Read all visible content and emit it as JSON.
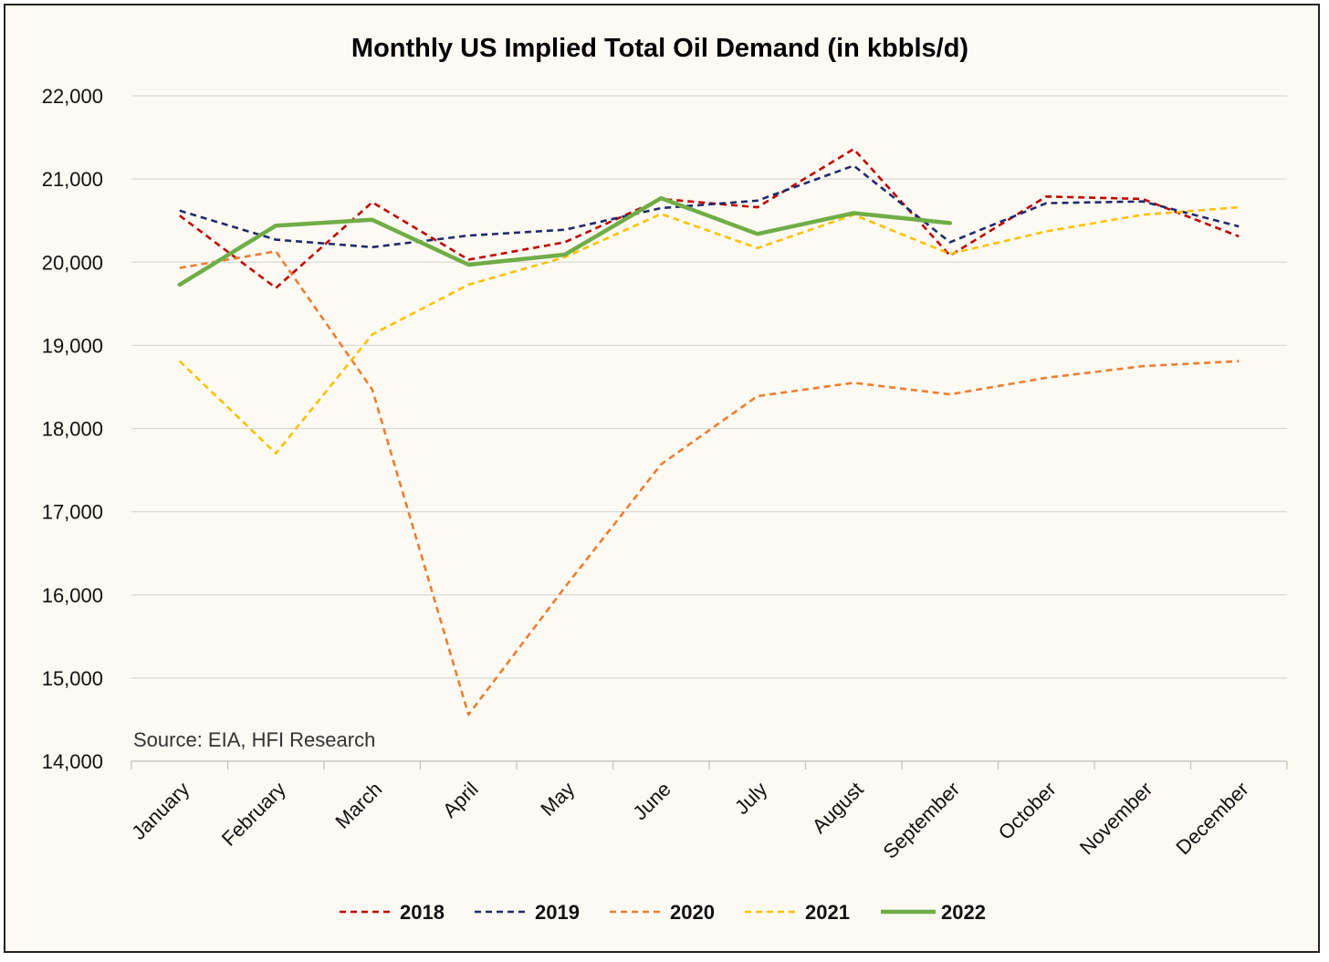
{
  "chart_data": {
    "type": "line",
    "title": "Monthly US Implied Total Oil Demand (in kbbls/d)",
    "source": "Source: EIA, HFI Research",
    "xlabel": "",
    "ylabel": "",
    "ylim": [
      14000,
      22000
    ],
    "y_ticks": [
      22000,
      21000,
      20000,
      19000,
      18000,
      17000,
      16000,
      15000,
      14000
    ],
    "y_tick_labels": [
      "22,000",
      "21,000",
      "20,000",
      "19,000",
      "18,000",
      "17,000",
      "16,000",
      "15,000",
      "14,000"
    ],
    "grid": true,
    "legend_position": "bottom",
    "categories": [
      "January",
      "February",
      "March",
      "April",
      "May",
      "June",
      "July",
      "August",
      "September",
      "October",
      "November",
      "December"
    ],
    "series": [
      {
        "name": "2018",
        "color": "#c00000",
        "style": "dashed",
        "values": [
          20560,
          19690,
          20720,
          20030,
          20240,
          20760,
          20660,
          21360,
          20080,
          20790,
          20760,
          20310
        ]
      },
      {
        "name": "2019",
        "color": "#1f2a6b",
        "style": "dashed",
        "values": [
          20620,
          20270,
          20180,
          20320,
          20390,
          20650,
          20740,
          21160,
          20240,
          20710,
          20730,
          20430
        ]
      },
      {
        "name": "2020",
        "color": "#ed7d31",
        "style": "dashed",
        "values": [
          19930,
          20130,
          18470,
          14560,
          16090,
          17570,
          18390,
          18550,
          18410,
          18610,
          18750,
          18810
        ]
      },
      {
        "name": "2021",
        "color": "#ffc000",
        "style": "dashed",
        "values": [
          18810,
          17700,
          19130,
          19730,
          20060,
          20580,
          20170,
          20570,
          20100,
          20370,
          20570,
          20660
        ]
      },
      {
        "name": "2022",
        "color": "#70ad47",
        "style": "solid",
        "values": [
          19730,
          20440,
          20510,
          19970,
          20090,
          20770,
          20340,
          20590,
          20470,
          null,
          null,
          null
        ]
      }
    ]
  }
}
